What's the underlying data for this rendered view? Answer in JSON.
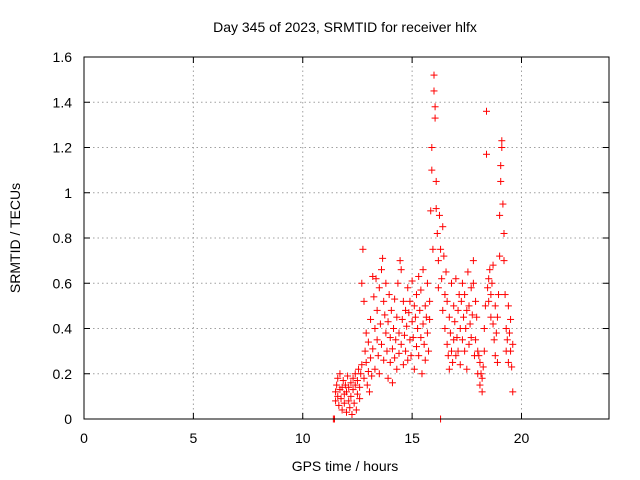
{
  "chart_data": {
    "type": "scatter",
    "title": "Day 345 of 2023, SRMTID for receiver hlfx",
    "xlabel": "GPS time / hours",
    "ylabel": "SRMTID / TECUs",
    "xlim": [
      0,
      24
    ],
    "ylim": [
      0,
      1.6
    ],
    "xticks": [
      0,
      5,
      10,
      15,
      20
    ],
    "yticks": [
      0,
      0.2,
      0.4,
      0.6,
      0.8,
      1,
      1.2,
      1.4,
      1.6
    ],
    "xtick_labels": [
      "0",
      "5",
      "10",
      "15",
      "20"
    ],
    "ytick_labels": [
      "0",
      "0.2",
      "0.4",
      "0.6",
      "0.8",
      "1",
      "1.2",
      "1.4",
      "1.6"
    ],
    "grid": true,
    "marker": "+",
    "color": "#ff0000",
    "series": [
      {
        "name": "SRMTID",
        "points": [
          [
            11.4,
            0.0
          ],
          [
            11.45,
            0.0
          ],
          [
            11.5,
            0.08
          ],
          [
            11.5,
            0.12
          ],
          [
            11.55,
            0.15
          ],
          [
            11.6,
            0.1
          ],
          [
            11.6,
            0.18
          ],
          [
            11.65,
            0.06
          ],
          [
            11.7,
            0.13
          ],
          [
            11.7,
            0.2
          ],
          [
            11.75,
            0.09
          ],
          [
            11.8,
            0.14
          ],
          [
            11.8,
            0.04
          ],
          [
            11.85,
            0.17
          ],
          [
            11.9,
            0.11
          ],
          [
            11.9,
            0.07
          ],
          [
            11.95,
            0.15
          ],
          [
            12.0,
            0.03
          ],
          [
            12.0,
            0.12
          ],
          [
            12.05,
            0.19
          ],
          [
            12.1,
            0.08
          ],
          [
            12.1,
            0.14
          ],
          [
            12.15,
            0.05
          ],
          [
            12.2,
            0.16
          ],
          [
            12.2,
            0.1
          ],
          [
            12.25,
            0.02
          ],
          [
            12.3,
            0.13
          ],
          [
            12.3,
            0.18
          ],
          [
            12.35,
            0.07
          ],
          [
            12.4,
            0.15
          ],
          [
            12.4,
            0.2
          ],
          [
            12.45,
            0.04
          ],
          [
            12.5,
            0.11
          ],
          [
            12.5,
            0.17
          ],
          [
            12.55,
            0.22
          ],
          [
            12.6,
            0.14
          ],
          [
            12.6,
            0.09
          ],
          [
            12.65,
            0.2
          ],
          [
            12.7,
            0.24
          ],
          [
            12.7,
            0.6
          ],
          [
            12.75,
            0.75
          ],
          [
            12.8,
            0.52
          ],
          [
            12.8,
            0.18
          ],
          [
            12.85,
            0.3
          ],
          [
            12.9,
            0.25
          ],
          [
            12.9,
            0.38
          ],
          [
            12.95,
            0.15
          ],
          [
            13.0,
            0.21
          ],
          [
            13.0,
            0.34
          ],
          [
            13.05,
            0.12
          ],
          [
            13.1,
            0.27
          ],
          [
            13.1,
            0.44
          ],
          [
            13.15,
            0.19
          ],
          [
            13.2,
            0.63
          ],
          [
            13.2,
            0.31
          ],
          [
            13.25,
            0.54
          ],
          [
            13.3,
            0.22
          ],
          [
            13.3,
            0.4
          ],
          [
            13.35,
            0.62
          ],
          [
            13.4,
            0.35
          ],
          [
            13.4,
            0.48
          ],
          [
            13.45,
            0.28
          ],
          [
            13.5,
            0.58
          ],
          [
            13.5,
            0.2
          ],
          [
            13.55,
            0.42
          ],
          [
            13.6,
            0.33
          ],
          [
            13.6,
            0.66
          ],
          [
            13.65,
            0.71
          ],
          [
            13.7,
            0.52
          ],
          [
            13.7,
            0.26
          ],
          [
            13.75,
            0.46
          ],
          [
            13.8,
            0.38
          ],
          [
            13.8,
            0.6
          ],
          [
            13.85,
            0.3
          ],
          [
            13.9,
            0.18
          ],
          [
            13.9,
            0.43
          ],
          [
            13.95,
            0.55
          ],
          [
            14.0,
            0.25
          ],
          [
            14.0,
            0.36
          ],
          [
            14.05,
            0.48
          ],
          [
            14.1,
            0.31
          ],
          [
            14.1,
            0.16
          ],
          [
            14.15,
            0.4
          ],
          [
            14.2,
            0.27
          ],
          [
            14.2,
            0.53
          ],
          [
            14.25,
            0.35
          ],
          [
            14.3,
            0.22
          ],
          [
            14.3,
            0.45
          ],
          [
            14.35,
            0.6
          ],
          [
            14.4,
            0.38
          ],
          [
            14.4,
            0.29
          ],
          [
            14.45,
            0.7
          ],
          [
            14.5,
            0.33
          ],
          [
            14.5,
            0.66
          ],
          [
            14.55,
            0.44
          ],
          [
            14.6,
            0.24
          ],
          [
            14.6,
            0.52
          ],
          [
            14.65,
            0.37
          ],
          [
            14.7,
            0.48
          ],
          [
            14.7,
            0.3
          ],
          [
            14.75,
            0.41
          ],
          [
            14.8,
            0.58
          ],
          [
            14.8,
            0.26
          ],
          [
            14.85,
            0.47
          ],
          [
            14.9,
            0.35
          ],
          [
            14.9,
            0.52
          ],
          [
            14.95,
            0.28
          ],
          [
            15.0,
            0.43
          ],
          [
            15.0,
            0.61
          ],
          [
            15.05,
            0.36
          ],
          [
            15.1,
            0.5
          ],
          [
            15.1,
            0.22
          ],
          [
            15.15,
            0.45
          ],
          [
            15.2,
            0.32
          ],
          [
            15.2,
            0.55
          ],
          [
            15.25,
            0.4
          ],
          [
            15.3,
            0.63
          ],
          [
            15.3,
            0.28
          ],
          [
            15.35,
            0.48
          ],
          [
            15.4,
            0.36
          ],
          [
            15.4,
            0.57
          ],
          [
            15.45,
            0.2
          ],
          [
            15.5,
            0.42
          ],
          [
            15.5,
            0.66
          ],
          [
            15.55,
            0.33
          ],
          [
            15.6,
            0.5
          ],
          [
            15.6,
            0.26
          ],
          [
            15.65,
            0.45
          ],
          [
            15.7,
            0.38
          ],
          [
            15.7,
            0.6
          ],
          [
            15.75,
            0.3
          ],
          [
            15.8,
            0.52
          ],
          [
            15.8,
            0.44
          ],
          [
            15.85,
            0.92
          ],
          [
            15.9,
            1.1
          ],
          [
            15.9,
            1.2
          ],
          [
            15.95,
            0.75
          ],
          [
            16.0,
            1.52
          ],
          [
            16.0,
            1.45
          ],
          [
            16.05,
            1.33
          ],
          [
            16.05,
            1.38
          ],
          [
            16.1,
            0.93
          ],
          [
            16.1,
            1.05
          ],
          [
            16.15,
            0.82
          ],
          [
            16.2,
            0.7
          ],
          [
            16.2,
            0.58
          ],
          [
            16.25,
            0.9
          ],
          [
            16.3,
            0.75
          ],
          [
            16.3,
            0.0
          ],
          [
            16.35,
            0.62
          ],
          [
            16.4,
            0.85
          ],
          [
            16.4,
            0.48
          ],
          [
            16.45,
            0.72
          ],
          [
            16.5,
            0.55
          ],
          [
            16.5,
            0.4
          ],
          [
            16.55,
            0.65
          ],
          [
            16.6,
            0.33
          ],
          [
            16.6,
            0.52
          ],
          [
            16.65,
            0.28
          ],
          [
            16.7,
            0.45
          ],
          [
            16.7,
            0.22
          ],
          [
            16.75,
            0.38
          ],
          [
            16.8,
            0.6
          ],
          [
            16.8,
            0.3
          ],
          [
            16.85,
            0.25
          ],
          [
            16.9,
            0.5
          ],
          [
            16.9,
            0.35
          ],
          [
            16.95,
            0.43
          ],
          [
            17.0,
            0.28
          ],
          [
            17.0,
            0.62
          ],
          [
            17.05,
            0.36
          ],
          [
            17.1,
            0.48
          ],
          [
            17.1,
            0.3
          ],
          [
            17.15,
            0.55
          ],
          [
            17.2,
            0.4
          ],
          [
            17.2,
            0.24
          ],
          [
            17.25,
            0.52
          ],
          [
            17.3,
            0.35
          ],
          [
            17.3,
            0.6
          ],
          [
            17.35,
            0.45
          ],
          [
            17.4,
            0.3
          ],
          [
            17.4,
            0.55
          ],
          [
            17.45,
            0.4
          ],
          [
            17.5,
            0.22
          ],
          [
            17.5,
            0.48
          ],
          [
            17.55,
            0.65
          ],
          [
            17.6,
            0.33
          ],
          [
            17.6,
            0.5
          ],
          [
            17.65,
            0.42
          ],
          [
            17.7,
            0.58
          ],
          [
            17.7,
            0.36
          ],
          [
            17.75,
            0.46
          ],
          [
            17.8,
            0.6
          ],
          [
            17.8,
            0.7
          ],
          [
            17.85,
            0.28
          ],
          [
            17.9,
            0.52
          ],
          [
            17.9,
            0.35
          ],
          [
            17.95,
            0.45
          ],
          [
            18.0,
            0.3
          ],
          [
            18.0,
            0.2
          ],
          [
            18.05,
            0.28
          ],
          [
            18.1,
            0.15
          ],
          [
            18.1,
            0.25
          ],
          [
            18.15,
            0.2
          ],
          [
            18.2,
            0.18
          ],
          [
            18.2,
            0.12
          ],
          [
            18.25,
            0.23
          ],
          [
            18.3,
            0.3
          ],
          [
            18.3,
            0.4
          ],
          [
            18.35,
            0.5
          ],
          [
            18.4,
            1.17
          ],
          [
            18.4,
            1.36
          ],
          [
            18.45,
            0.58
          ],
          [
            18.5,
            0.62
          ],
          [
            18.5,
            0.52
          ],
          [
            18.55,
            0.66
          ],
          [
            18.6,
            0.55
          ],
          [
            18.6,
            0.45
          ],
          [
            18.65,
            0.6
          ],
          [
            18.7,
            0.42
          ],
          [
            18.7,
            0.68
          ],
          [
            18.75,
            0.35
          ],
          [
            18.8,
            0.5
          ],
          [
            18.8,
            0.28
          ],
          [
            18.85,
            0.38
          ],
          [
            18.9,
            0.25
          ],
          [
            18.9,
            0.45
          ],
          [
            18.95,
            0.55
          ],
          [
            19.0,
            0.72
          ],
          [
            19.0,
            0.9
          ],
          [
            19.05,
            1.05
          ],
          [
            19.05,
            1.12
          ],
          [
            19.1,
            1.2
          ],
          [
            19.1,
            1.23
          ],
          [
            19.15,
            0.95
          ],
          [
            19.2,
            0.82
          ],
          [
            19.2,
            0.7
          ],
          [
            19.25,
            0.55
          ],
          [
            19.3,
            0.4
          ],
          [
            19.3,
            0.3
          ],
          [
            19.35,
            0.35
          ],
          [
            19.4,
            0.25
          ],
          [
            19.4,
            0.5
          ],
          [
            19.45,
            0.38
          ],
          [
            19.5,
            0.44
          ],
          [
            19.5,
            0.3
          ],
          [
            19.55,
            0.23
          ],
          [
            19.6,
            0.33
          ],
          [
            19.6,
            0.12
          ]
        ]
      }
    ]
  }
}
